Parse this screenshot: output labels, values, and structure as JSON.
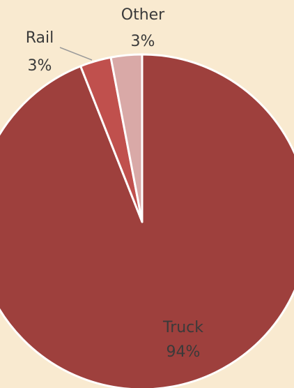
{
  "chart_data": {
    "type": "pie",
    "categories": [
      "Truck",
      "Rail",
      "Other"
    ],
    "values": [
      94,
      3,
      3
    ],
    "value_labels": [
      "94%",
      "3%",
      "3%"
    ],
    "colors": [
      "#9e403d",
      "#c0504d",
      "#d9a9a7"
    ]
  }
}
